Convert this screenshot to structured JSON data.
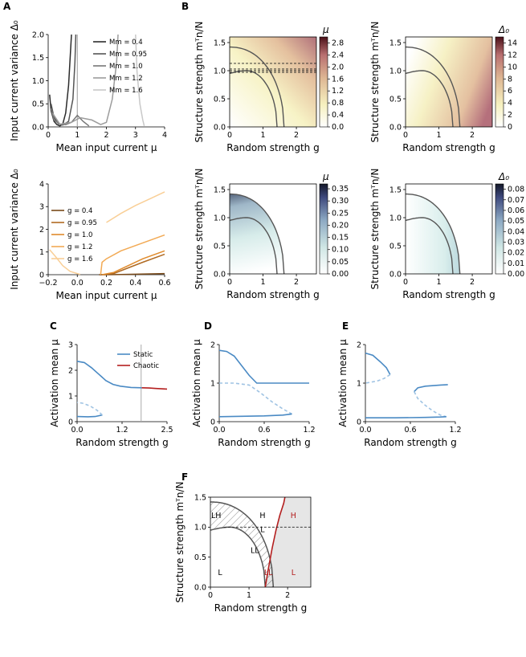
{
  "panel_letters": [
    "A",
    "B",
    "C",
    "D",
    "E",
    "F"
  ],
  "colors": {
    "gray_curves": [
      "#2b2b2b",
      "#555555",
      "#777777",
      "#9c9c9c",
      "#c8c8c8"
    ],
    "orange_curves": [
      "#7a4a19",
      "#b06a22",
      "#e08b2c",
      "#f2aa55",
      "#f9cf97"
    ],
    "static": "#4a8ac4",
    "chaotic": "#b41f1f",
    "phase_curve": "#555555",
    "chaotic_region": "#e6e6e6"
  },
  "chart_data": [
    {
      "id": "A-top",
      "type": "line",
      "xlabel": "Mean input current μ",
      "ylabel": "Input current variance Δ₀",
      "xlim": [
        0,
        4
      ],
      "ylim": [
        0,
        2.0
      ],
      "xticks": [
        "0",
        "1",
        "2",
        "3",
        "4"
      ],
      "yticks": [
        "0.0",
        "0.5",
        "1.0",
        "1.5",
        "2.0"
      ],
      "legend_position": "top-right",
      "series": [
        {
          "name": "Mm = 0.4",
          "points": [
            [
              0.05,
              0.7
            ],
            [
              0.1,
              0.35
            ],
            [
              0.2,
              0.12
            ],
            [
              0.3,
              0.05
            ],
            [
              0.4,
              0.02
            ],
            [
              0.5,
              0.06
            ],
            [
              0.6,
              0.3
            ],
            [
              0.7,
              0.9
            ],
            [
              0.8,
              2.0
            ]
          ]
        },
        {
          "name": "Mm = 0.95",
          "points": [
            [
              0.1,
              0.5
            ],
            [
              0.2,
              0.2
            ],
            [
              0.35,
              0.07
            ],
            [
              0.5,
              0.04
            ],
            [
              0.7,
              0.12
            ],
            [
              0.85,
              0.6
            ],
            [
              0.92,
              1.4
            ],
            [
              0.95,
              2.0
            ]
          ]
        },
        {
          "name": "Mm = 1.0",
          "points": [
            [
              0.1,
              0.4
            ],
            [
              0.2,
              0.15
            ],
            [
              0.4,
              0.06
            ],
            [
              0.6,
              0.05
            ],
            [
              0.8,
              0.1
            ],
            [
              1.0,
              0.25
            ],
            [
              1.2,
              0.12
            ],
            [
              1.4,
              0.02
            ]
          ]
        },
        {
          "name": "Mm = 1.2",
          "points": [
            [
              0.15,
              0.3
            ],
            [
              0.4,
              0.06
            ],
            [
              0.8,
              0.1
            ],
            [
              1.1,
              0.2
            ],
            [
              1.5,
              0.15
            ],
            [
              1.8,
              0.05
            ],
            [
              2.0,
              0.1
            ],
            [
              2.2,
              0.6
            ],
            [
              2.35,
              1.4
            ],
            [
              2.4,
              2.0
            ]
          ]
        },
        {
          "name": "Mm = 1.6",
          "points": [
            [
              3.0,
              2.0
            ],
            [
              3.05,
              1.2
            ],
            [
              3.15,
              0.5
            ],
            [
              3.25,
              0.15
            ],
            [
              3.3,
              0.02
            ]
          ]
        }
      ],
      "annotations": {
        "vertical_line_x": 1.0
      }
    },
    {
      "id": "A-bottom",
      "type": "line",
      "xlabel": "Mean input current μ",
      "ylabel": "Input current variance Δ₀",
      "xlim": [
        -0.2,
        0.6
      ],
      "ylim": [
        0,
        4
      ],
      "xticks": [
        "−0.2",
        "0.0",
        "0.2",
        "0.4",
        "0.6"
      ],
      "yticks": [
        "0",
        "1",
        "2",
        "3",
        "4"
      ],
      "legend_position": "top-left",
      "series": [
        {
          "name": "g = 0.4",
          "points": [
            [
              0.15,
              0.0
            ],
            [
              0.2,
              0.0
            ],
            [
              0.3,
              0.01
            ],
            [
              0.6,
              0.05
            ]
          ]
        },
        {
          "name": "g = 0.95",
          "points": [
            [
              0.17,
              0.0
            ],
            [
              0.25,
              0.05
            ],
            [
              0.35,
              0.3
            ],
            [
              0.45,
              0.55
            ],
            [
              0.6,
              0.9
            ]
          ]
        },
        {
          "name": "g = 1.0",
          "points": [
            [
              0.17,
              0.0
            ],
            [
              0.25,
              0.1
            ],
            [
              0.35,
              0.4
            ],
            [
              0.45,
              0.7
            ],
            [
              0.6,
              1.05
            ]
          ]
        },
        {
          "name": "g = 1.2",
          "points": [
            [
              0.16,
              0.0
            ],
            [
              0.17,
              0.55
            ],
            [
              0.2,
              0.7
            ],
            [
              0.3,
              1.05
            ],
            [
              0.45,
              1.4
            ],
            [
              0.6,
              1.75
            ]
          ]
        },
        {
          "name": "g = 1.6",
          "points": [
            [
              -0.19,
              1.1
            ],
            [
              -0.15,
              0.8
            ],
            [
              -0.1,
              0.4
            ],
            [
              -0.05,
              0.15
            ],
            [
              0.0,
              0.05
            ],
            [
              0.02,
              0.01
            ],
            [
              0.2,
              2.3
            ],
            [
              0.3,
              2.7
            ],
            [
              0.4,
              3.05
            ],
            [
              0.5,
              3.35
            ],
            [
              0.6,
              3.65
            ]
          ]
        }
      ]
    },
    {
      "id": "B1",
      "type": "heatmap",
      "xlabel": "Random strength g",
      "ylabel": "Structure strength mᵀn/N",
      "xlim": [
        0,
        2.6
      ],
      "ylim": [
        0,
        1.6
      ],
      "xticks": [
        "0",
        "1",
        "2"
      ],
      "yticks": [
        "0.0",
        "0.5",
        "1.0",
        "1.5"
      ],
      "colorbar_label": "μ",
      "colorbar_ticks": [
        "0.0",
        "0.4",
        "0.8",
        "1.2",
        "1.6",
        "2.0",
        "2.4",
        "2.8"
      ],
      "colorbar_range": [
        0,
        3.0
      ],
      "colormap": "white-yellow-rose",
      "dashed_lines_y": [
        1.0,
        1.03,
        0.97,
        1.13
      ],
      "boundary_curves": "two gray curves (upper from (0,1.42) down to (1.6,0); lower from (0,0.95) peaking 1.0 at 0.5 down to (1.4,0))"
    },
    {
      "id": "B2",
      "type": "heatmap",
      "xlabel": "Random strength g",
      "ylabel": "Structure strength mᵀn/N",
      "xlim": [
        0,
        2.6
      ],
      "ylim": [
        0,
        1.6
      ],
      "xticks": [
        "0",
        "1",
        "2"
      ],
      "yticks": [
        "0.0",
        "0.5",
        "1.0",
        "1.5"
      ],
      "colorbar_label": "Δ₀",
      "colorbar_ticks": [
        "0",
        "2",
        "4",
        "6",
        "8",
        "10",
        "12",
        "14"
      ],
      "colorbar_range": [
        0,
        15
      ],
      "colormap": "white-yellow-rose"
    },
    {
      "id": "B3",
      "type": "heatmap",
      "xlabel": "Random strength g",
      "ylabel": "Structure strength mᵀn/N",
      "xlim": [
        0,
        2.6
      ],
      "ylim": [
        0,
        1.6
      ],
      "xticks": [
        "0",
        "1",
        "2"
      ],
      "yticks": [
        "0.0",
        "0.5",
        "1.0",
        "1.5"
      ],
      "colorbar_label": "μ",
      "colorbar_ticks": [
        "0.00",
        "0.05",
        "0.10",
        "0.15",
        "0.20",
        "0.25",
        "0.30",
        "0.35"
      ],
      "colorbar_range": [
        0,
        0.37
      ],
      "colormap": "white-teal-navy"
    },
    {
      "id": "B4",
      "type": "heatmap",
      "xlabel": "Random strength g",
      "ylabel": "Structure strength mᵀn/N",
      "xlim": [
        0,
        2.6
      ],
      "ylim": [
        0,
        1.6
      ],
      "xticks": [
        "0",
        "1",
        "2"
      ],
      "yticks": [
        "0.0",
        "0.5",
        "1.0",
        "1.5"
      ],
      "colorbar_label": "Δ₀",
      "colorbar_ticks": [
        "0.00",
        "0.01",
        "0.02",
        "0.03",
        "0.04",
        "0.05",
        "0.06",
        "0.07",
        "0.08"
      ],
      "colorbar_range": [
        0,
        0.085
      ],
      "colormap": "white-teal-navy"
    },
    {
      "id": "C",
      "type": "line",
      "xlabel": "Random strength g",
      "ylabel": "Activation mean μ",
      "xlim": [
        0,
        2.5
      ],
      "ylim": [
        0,
        3
      ],
      "xticks": [
        "0.0",
        "1.2",
        "2.5"
      ],
      "yticks": [
        "0",
        "1",
        "2",
        "3"
      ],
      "legend_position": "top-right",
      "series": [
        {
          "name": "Static",
          "style": "solid",
          "points": [
            [
              0,
              2.35
            ],
            [
              0.2,
              2.3
            ],
            [
              0.4,
              2.1
            ],
            [
              0.6,
              1.85
            ],
            [
              0.8,
              1.6
            ],
            [
              1.0,
              1.45
            ],
            [
              1.2,
              1.38
            ],
            [
              1.5,
              1.33
            ],
            [
              1.8,
              1.32
            ]
          ]
        },
        {
          "name": "",
          "style": "solid",
          "points": [
            [
              0,
              0.2
            ],
            [
              0.3,
              0.19
            ],
            [
              0.5,
              0.2
            ],
            [
              0.7,
              0.26
            ]
          ]
        },
        {
          "name": "",
          "style": "dashed",
          "points": [
            [
              0.7,
              0.26
            ],
            [
              0.55,
              0.45
            ],
            [
              0.35,
              0.62
            ],
            [
              0.15,
              0.72
            ],
            [
              0,
              0.75
            ]
          ]
        },
        {
          "name": "Chaotic",
          "style": "solid",
          "points": [
            [
              1.8,
              1.32
            ],
            [
              2.0,
              1.31
            ],
            [
              2.2,
              1.29
            ],
            [
              2.5,
              1.27
            ]
          ]
        }
      ],
      "annotations": {
        "vertical_line_x": 1.78
      }
    },
    {
      "id": "D",
      "type": "line",
      "xlabel": "Random strength g",
      "ylabel": "Activation mean μ",
      "xlim": [
        0,
        1.2
      ],
      "ylim": [
        0,
        2
      ],
      "xticks": [
        "0.0",
        "0.6",
        "1.2"
      ],
      "yticks": [
        "0",
        "1",
        "2"
      ],
      "series": [
        {
          "name": "",
          "style": "solid",
          "points": [
            [
              0,
              1.85
            ],
            [
              0.1,
              1.82
            ],
            [
              0.2,
              1.7
            ],
            [
              0.3,
              1.45
            ],
            [
              0.4,
              1.2
            ],
            [
              0.5,
              1.0
            ],
            [
              1.2,
              1.0
            ]
          ]
        },
        {
          "name": "",
          "style": "dashed",
          "points": [
            [
              0,
              1.0
            ],
            [
              0.2,
              1.0
            ],
            [
              0.4,
              0.95
            ],
            [
              0.55,
              0.75
            ],
            [
              0.7,
              0.52
            ],
            [
              0.85,
              0.33
            ],
            [
              0.97,
              0.2
            ]
          ]
        },
        {
          "name": "",
          "style": "solid",
          "points": [
            [
              0,
              0.13
            ],
            [
              0.3,
              0.14
            ],
            [
              0.6,
              0.15
            ],
            [
              0.85,
              0.17
            ],
            [
              0.97,
              0.2
            ]
          ]
        }
      ]
    },
    {
      "id": "E",
      "type": "line",
      "xlabel": "Random strength g",
      "ylabel": "Activation mean μ",
      "xlim": [
        0,
        1.2
      ],
      "ylim": [
        0,
        2
      ],
      "xticks": [
        "0.0",
        "0.6",
        "1.2"
      ],
      "yticks": [
        "0",
        "1",
        "2"
      ],
      "series": [
        {
          "name": "",
          "style": "solid",
          "points": [
            [
              0,
              1.78
            ],
            [
              0.1,
              1.72
            ],
            [
              0.2,
              1.55
            ],
            [
              0.28,
              1.4
            ],
            [
              0.33,
              1.22
            ]
          ]
        },
        {
          "name": "",
          "style": "dashed",
          "points": [
            [
              0.33,
              1.22
            ],
            [
              0.25,
              1.12
            ],
            [
              0.15,
              1.05
            ],
            [
              0,
              1.0
            ]
          ]
        },
        {
          "name": "",
          "style": "solid",
          "points": [
            [
              0.65,
              0.78
            ],
            [
              0.7,
              0.88
            ],
            [
              0.8,
              0.92
            ],
            [
              1.0,
              0.95
            ],
            [
              1.1,
              0.96
            ]
          ]
        },
        {
          "name": "",
          "style": "dashed",
          "points": [
            [
              0.65,
              0.78
            ],
            [
              0.7,
              0.6
            ],
            [
              0.8,
              0.42
            ],
            [
              0.9,
              0.28
            ],
            [
              1.0,
              0.17
            ],
            [
              1.08,
              0.13
            ]
          ]
        },
        {
          "name": "",
          "style": "solid",
          "points": [
            [
              0,
              0.1
            ],
            [
              0.4,
              0.1
            ],
            [
              0.8,
              0.11
            ],
            [
              1.0,
              0.12
            ],
            [
              1.08,
              0.13
            ]
          ]
        }
      ]
    },
    {
      "id": "F",
      "type": "line",
      "xlabel": "Random strength g",
      "ylabel": "Structure strength mᵀn/N",
      "xlim": [
        0,
        2.6
      ],
      "ylim": [
        0,
        1.5
      ],
      "xticks": [
        "0",
        "1",
        "2"
      ],
      "yticks": [
        "0.0",
        "0.5",
        "1.0",
        "1.5"
      ],
      "dashed_line_y": 1.0,
      "region_labels": [
        {
          "text": "LH",
          "x": 0.15,
          "y": 1.15,
          "color": "black"
        },
        {
          "text": "H",
          "x": 1.35,
          "y": 1.15,
          "color": "black"
        },
        {
          "text": "L",
          "x": 1.35,
          "y": 0.92,
          "color": "black"
        },
        {
          "text": "LL",
          "x": 1.15,
          "y": 0.57,
          "color": "black"
        },
        {
          "text": "L",
          "x": 0.25,
          "y": 0.2,
          "color": "black"
        },
        {
          "text": "LL",
          "x": 1.5,
          "y": 0.2,
          "color": "red"
        },
        {
          "text": "H",
          "x": 2.15,
          "y": 1.15,
          "color": "red"
        },
        {
          "text": "L",
          "x": 2.15,
          "y": 0.2,
          "color": "red"
        }
      ]
    }
  ]
}
